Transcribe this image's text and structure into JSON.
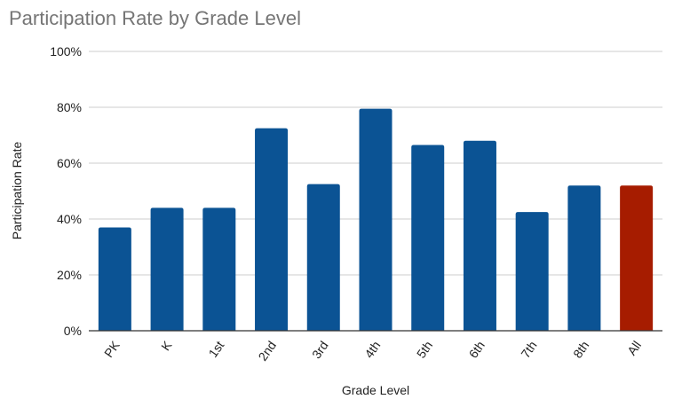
{
  "chart_data": {
    "type": "bar",
    "title": "Participation Rate by Grade Level",
    "xlabel": "Grade Level",
    "ylabel": "Participation Rate",
    "categories": [
      "PK",
      "K",
      "1st",
      "2nd",
      "3rd",
      "4th",
      "5th",
      "6th",
      "7th",
      "8th",
      "All"
    ],
    "series": [
      {
        "values": [
          37,
          44,
          44,
          72.5,
          52.5,
          79.5,
          66.5,
          68,
          42.5,
          52,
          52
        ]
      }
    ],
    "ylim": [
      0,
      100
    ],
    "yticks": [
      "0%",
      "20%",
      "40%",
      "60%",
      "80%",
      "100%"
    ],
    "yticks_values": [
      0,
      20,
      40,
      60,
      80,
      100
    ],
    "grid": true,
    "legend": "none",
    "colors": {
      "bar": "#0b5394",
      "highlight": "#a61c00",
      "highlight_category": "All",
      "title": "#757575",
      "grid": "#cccccc"
    }
  }
}
